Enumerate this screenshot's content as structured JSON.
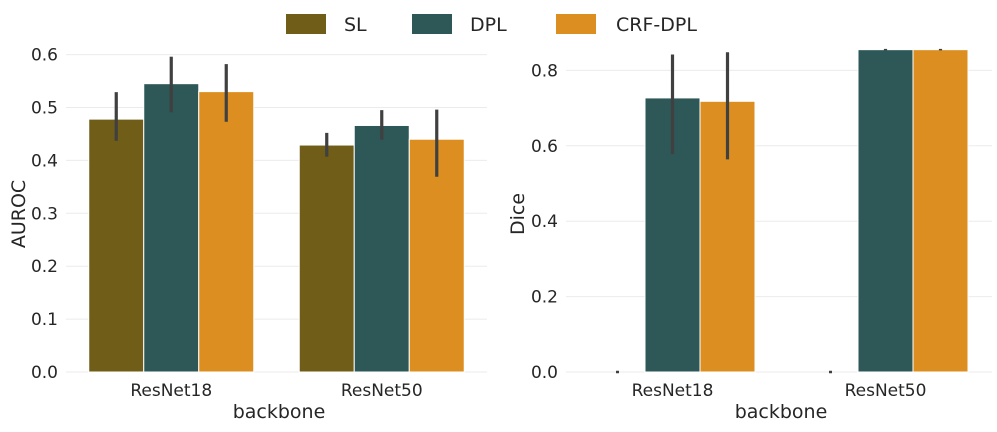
{
  "legend": {
    "placement": "top-center",
    "entries": [
      {
        "name": "SL",
        "color": "#705d18"
      },
      {
        "name": "DPL",
        "color": "#2e5757"
      },
      {
        "name": "CRF-DPL",
        "color": "#dc8f20"
      }
    ]
  },
  "chart_data": [
    {
      "type": "bar",
      "xlabel": "backbone",
      "ylabel": "AUROC",
      "categories": [
        "ResNet18",
        "ResNet50"
      ],
      "ylim": [
        0,
        0.62
      ],
      "yticks": [
        "0.0",
        "0.1",
        "0.2",
        "0.3",
        "0.4",
        "0.5",
        "0.6"
      ],
      "grid": true,
      "series": [
        {
          "name": "SL",
          "values": [
            0.478,
            0.429
          ],
          "error_low": [
            0.437,
            0.407
          ],
          "error_high": [
            0.529,
            0.452
          ]
        },
        {
          "name": "DPL",
          "values": [
            0.545,
            0.466
          ],
          "error_low": [
            0.491,
            0.439
          ],
          "error_high": [
            0.596,
            0.495
          ]
        },
        {
          "name": "CRF-DPL",
          "values": [
            0.53,
            0.44
          ],
          "error_low": [
            0.473,
            0.369
          ],
          "error_high": [
            0.582,
            0.496
          ]
        }
      ]
    },
    {
      "type": "bar",
      "xlabel": "backbone",
      "ylabel": "Dice",
      "categories": [
        "ResNet18",
        "ResNet50"
      ],
      "ylim": [
        0,
        0.87
      ],
      "yticks": [
        "0.0",
        "0.2",
        "0.4",
        "0.6",
        "0.8"
      ],
      "grid": true,
      "series": [
        {
          "name": "SL",
          "values": [
            0.0,
            0.0
          ],
          "error_low": [
            0.0,
            0.0
          ],
          "error_high": [
            0.0,
            0.0
          ]
        },
        {
          "name": "DPL",
          "values": [
            0.727,
            0.855
          ],
          "error_low": [
            0.578,
            0.853
          ],
          "error_high": [
            0.842,
            0.857
          ]
        },
        {
          "name": "CRF-DPL",
          "values": [
            0.718,
            0.855
          ],
          "error_low": [
            0.564,
            0.853
          ],
          "error_high": [
            0.848,
            0.857
          ]
        }
      ]
    }
  ]
}
